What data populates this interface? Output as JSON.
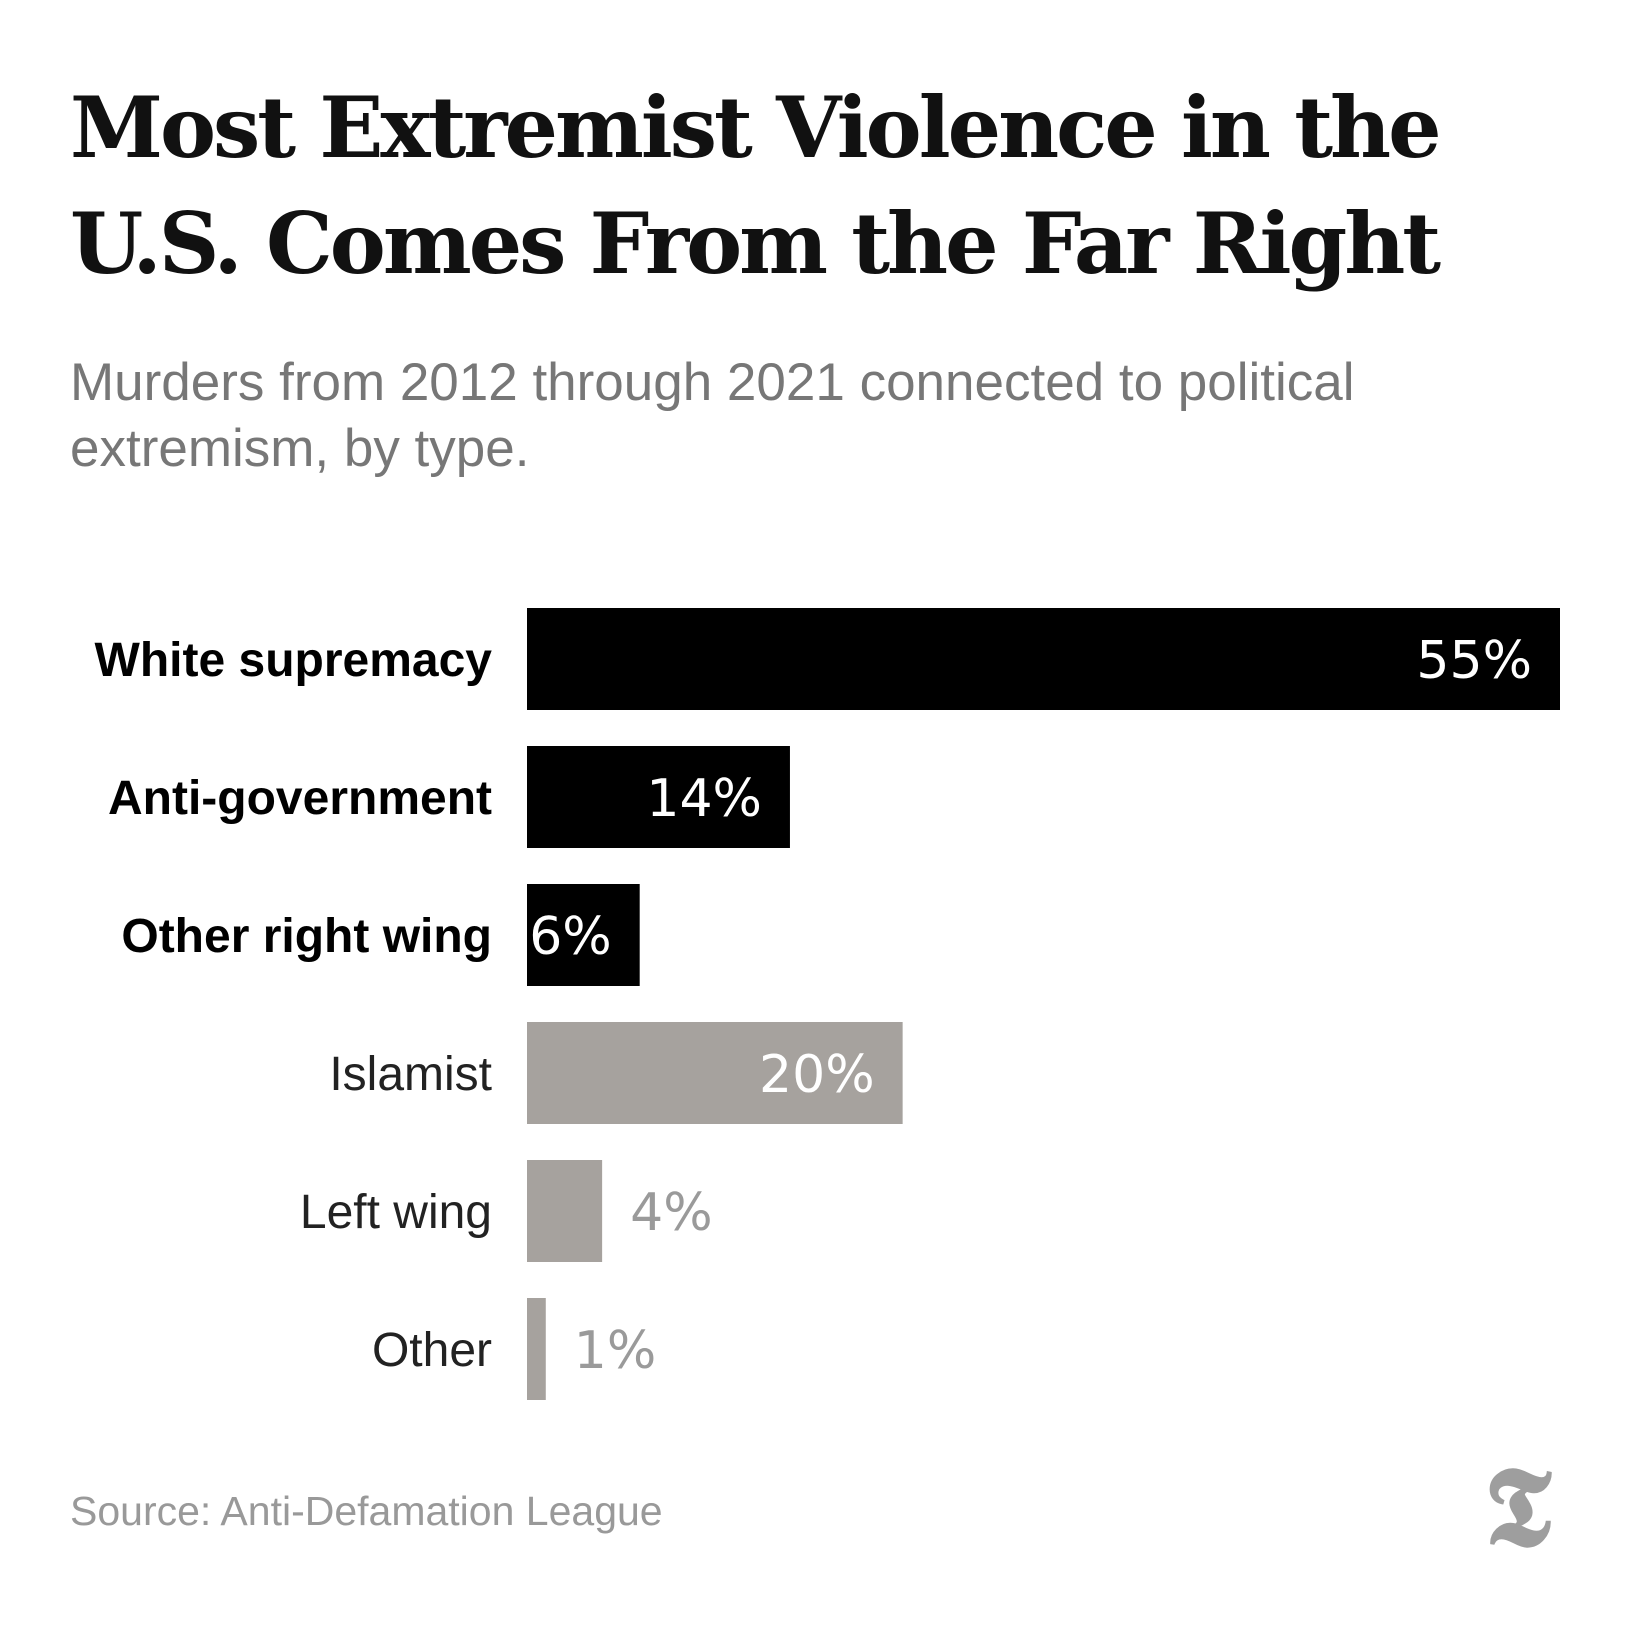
{
  "chart_data": {
    "type": "bar",
    "orientation": "horizontal",
    "title": "Most Extremist Violence in the U.S. Comes From the Far Right",
    "subtitle": "Murders from 2012 through 2021 connected to political extremism, by type.",
    "categories": [
      "White supremacy",
      "Anti-government",
      "Other right wing",
      "Islamist",
      "Left wing",
      "Other"
    ],
    "values": [
      55,
      14,
      6,
      20,
      4,
      1
    ],
    "value_labels": [
      "55%",
      "14%",
      "6%",
      "20%",
      "4%",
      "1%"
    ],
    "group": [
      "right",
      "right",
      "right",
      "other",
      "other",
      "other"
    ],
    "unit": "%",
    "xlim": [
      0,
      55
    ],
    "grid": false,
    "legend": "none",
    "source": "Source: Anti-Defamation League"
  },
  "colors": {
    "right_wing_bar": "#000000",
    "other_bar": "#a6a29e",
    "label_dark": "#000000",
    "label_light": "#222222",
    "value_outside": "#9a9a9a"
  },
  "logo": {
    "name": "nyt-t-logo-icon",
    "glyph": "𝕿"
  }
}
